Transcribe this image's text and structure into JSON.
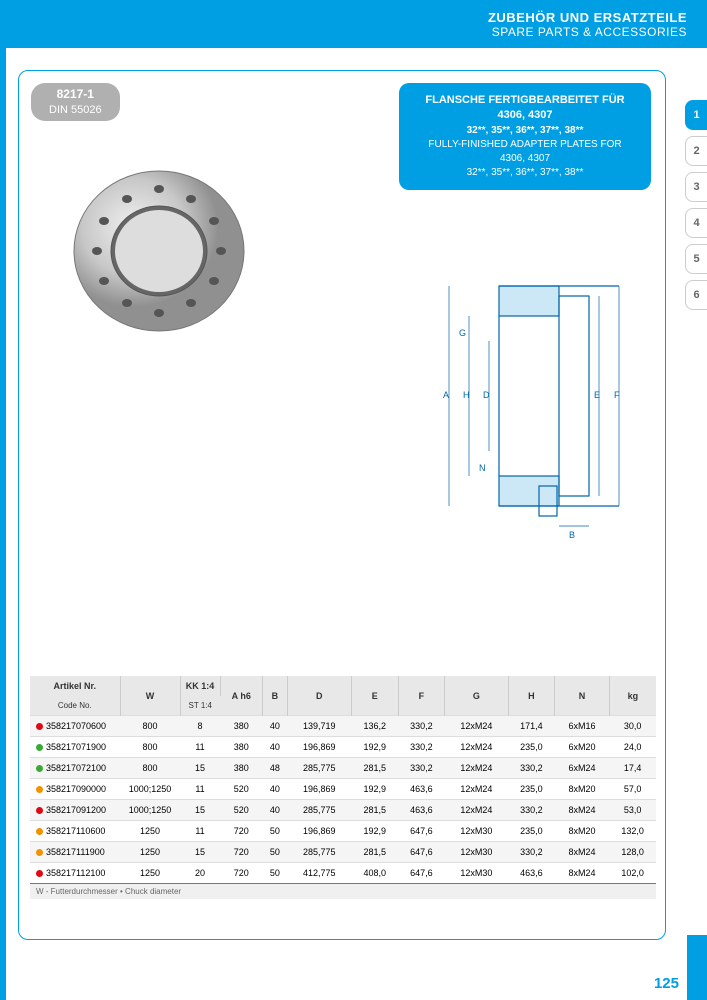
{
  "header": {
    "de": "ZUBEHÖR UND ERSATZTEILE",
    "en": "SPARE PARTS & ACCESSORIES"
  },
  "tabs": [
    "1",
    "2",
    "3",
    "4",
    "5",
    "6"
  ],
  "badge": {
    "num": "8217-1",
    "std": "DIN 55026"
  },
  "title": {
    "l1": "FLANSCHE FERTIGBEARBEITET FÜR",
    "l2": "4306, 4307",
    "l3": "32**, 35**, 36**, 37**, 38**",
    "l4": "FULLY-FINISHED ADAPTER PLATES FOR",
    "l5": "4306, 4307",
    "l6": "32**, 35**, 36**, 37**, 38**"
  },
  "columns": {
    "c0a": "Artikel Nr.",
    "c0b": "Code No.",
    "c1": "W",
    "c2a": "KK 1:4",
    "c2b": "ST 1:4",
    "c3": "A h6",
    "c4": "B",
    "c5": "D",
    "c6": "E",
    "c7": "F",
    "c8": "G",
    "c9": "H",
    "c10": "N",
    "c11": "kg"
  },
  "dot_colors": {
    "red": "#e30613",
    "green": "#3aaa35",
    "orange": "#f39200",
    "yellow": "#f39200"
  },
  "rows": [
    {
      "dot": "#e30613",
      "code": "358217070600",
      "w": "800",
      "kk": "8",
      "a": "380",
      "b": "40",
      "d": "139,719",
      "e": "136,2",
      "f": "330,2",
      "g": "12xM24",
      "h": "171,4",
      "n": "6xM16",
      "kg": "30,0"
    },
    {
      "dot": "#3aaa35",
      "code": "358217071900",
      "w": "800",
      "kk": "11",
      "a": "380",
      "b": "40",
      "d": "196,869",
      "e": "192,9",
      "f": "330,2",
      "g": "12xM24",
      "h": "235,0",
      "n": "6xM20",
      "kg": "24,0"
    },
    {
      "dot": "#3aaa35",
      "code": "358217072100",
      "w": "800",
      "kk": "15",
      "a": "380",
      "b": "48",
      "d": "285,775",
      "e": "281,5",
      "f": "330,2",
      "g": "12xM24",
      "h": "330,2",
      "n": "6xM24",
      "kg": "17,4"
    },
    {
      "dot": "#f39200",
      "code": "358217090000",
      "w": "1000;1250",
      "kk": "11",
      "a": "520",
      "b": "40",
      "d": "196,869",
      "e": "192,9",
      "f": "463,6",
      "g": "12xM24",
      "h": "235,0",
      "n": "8xM20",
      "kg": "57,0"
    },
    {
      "dot": "#e30613",
      "code": "358217091200",
      "w": "1000;1250",
      "kk": "15",
      "a": "520",
      "b": "40",
      "d": "285,775",
      "e": "281,5",
      "f": "463,6",
      "g": "12xM24",
      "h": "330,2",
      "n": "8xM24",
      "kg": "53,0"
    },
    {
      "dot": "#f39200",
      "code": "358217110600",
      "w": "1250",
      "kk": "11",
      "a": "720",
      "b": "50",
      "d": "196,869",
      "e": "192,9",
      "f": "647,6",
      "g": "12xM30",
      "h": "235,0",
      "n": "8xM20",
      "kg": "132,0"
    },
    {
      "dot": "#f39200",
      "code": "358217111900",
      "w": "1250",
      "kk": "15",
      "a": "720",
      "b": "50",
      "d": "285,775",
      "e": "281,5",
      "f": "647,6",
      "g": "12xM30",
      "h": "330,2",
      "n": "8xM24",
      "kg": "128,0"
    },
    {
      "dot": "#e30613",
      "code": "358217112100",
      "w": "1250",
      "kk": "20",
      "a": "720",
      "b": "50",
      "d": "412,775",
      "e": "408,0",
      "f": "647,6",
      "g": "12xM30",
      "h": "463,6",
      "n": "8xM24",
      "kg": "102,0"
    }
  ],
  "footer_note": "W - Futterdurchmesser • Chuck diameter",
  "page_num": "125",
  "colors": {
    "brand": "#009fe3",
    "badge_bg": "#b0b0b0",
    "header_bg": "#e8e8e8"
  },
  "drawing_labels": [
    "A",
    "B",
    "D",
    "E",
    "F",
    "G",
    "H",
    "N"
  ]
}
